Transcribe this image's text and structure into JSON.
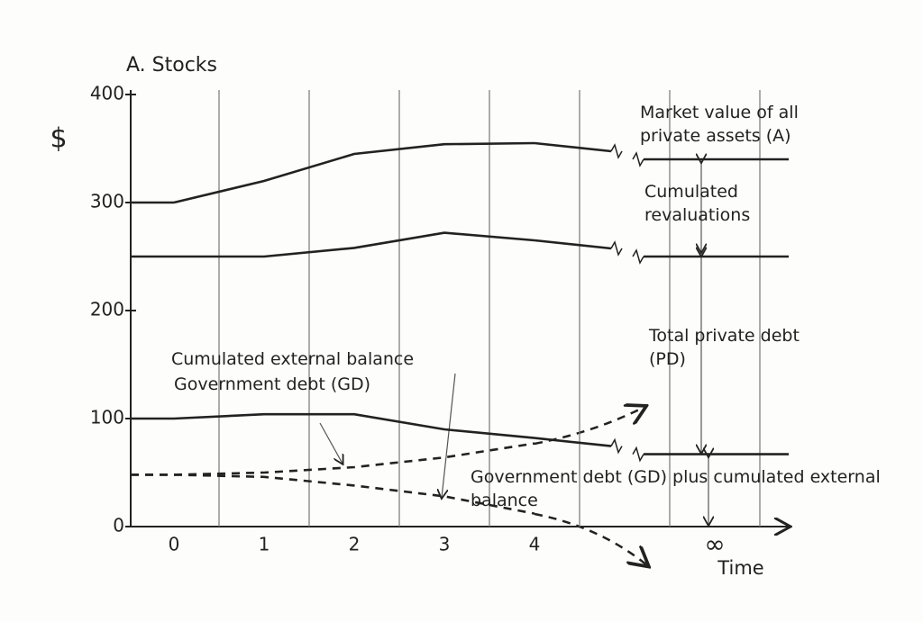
{
  "chart_data": {
    "type": "line",
    "title": "A. Stocks",
    "y_label": "$",
    "x_label": "Time",
    "categories": [
      "0",
      "1",
      "2",
      "3",
      "4",
      "∞"
    ],
    "ylim": [
      0,
      400
    ],
    "yticks": [
      0,
      100,
      200,
      300,
      400
    ],
    "annotations": [
      "Cumulated revaluations"
    ],
    "series": [
      {
        "name": "Market value of all private assets (A)",
        "color": "#222222",
        "style": "solid",
        "values": [
          300,
          320,
          345,
          354,
          355,
          340
        ]
      },
      {
        "name": "Total private debt (PD)",
        "color": "#222222",
        "style": "solid",
        "values": [
          250,
          250,
          258,
          272,
          265,
          250
        ]
      },
      {
        "name": "Government debt (GD) plus cumulated external balance",
        "color": "#222222",
        "style": "solid",
        "values": [
          100,
          104,
          104,
          90,
          82,
          67
        ]
      },
      {
        "name": "Government debt (GD)",
        "color": "#222222",
        "style": "dashed",
        "values": [
          48,
          50,
          55,
          64,
          77,
          null
        ]
      },
      {
        "name": "Cumulated external balance",
        "color": "#222222",
        "style": "dashed",
        "values": [
          48,
          46,
          38,
          28,
          12,
          null
        ]
      }
    ]
  }
}
